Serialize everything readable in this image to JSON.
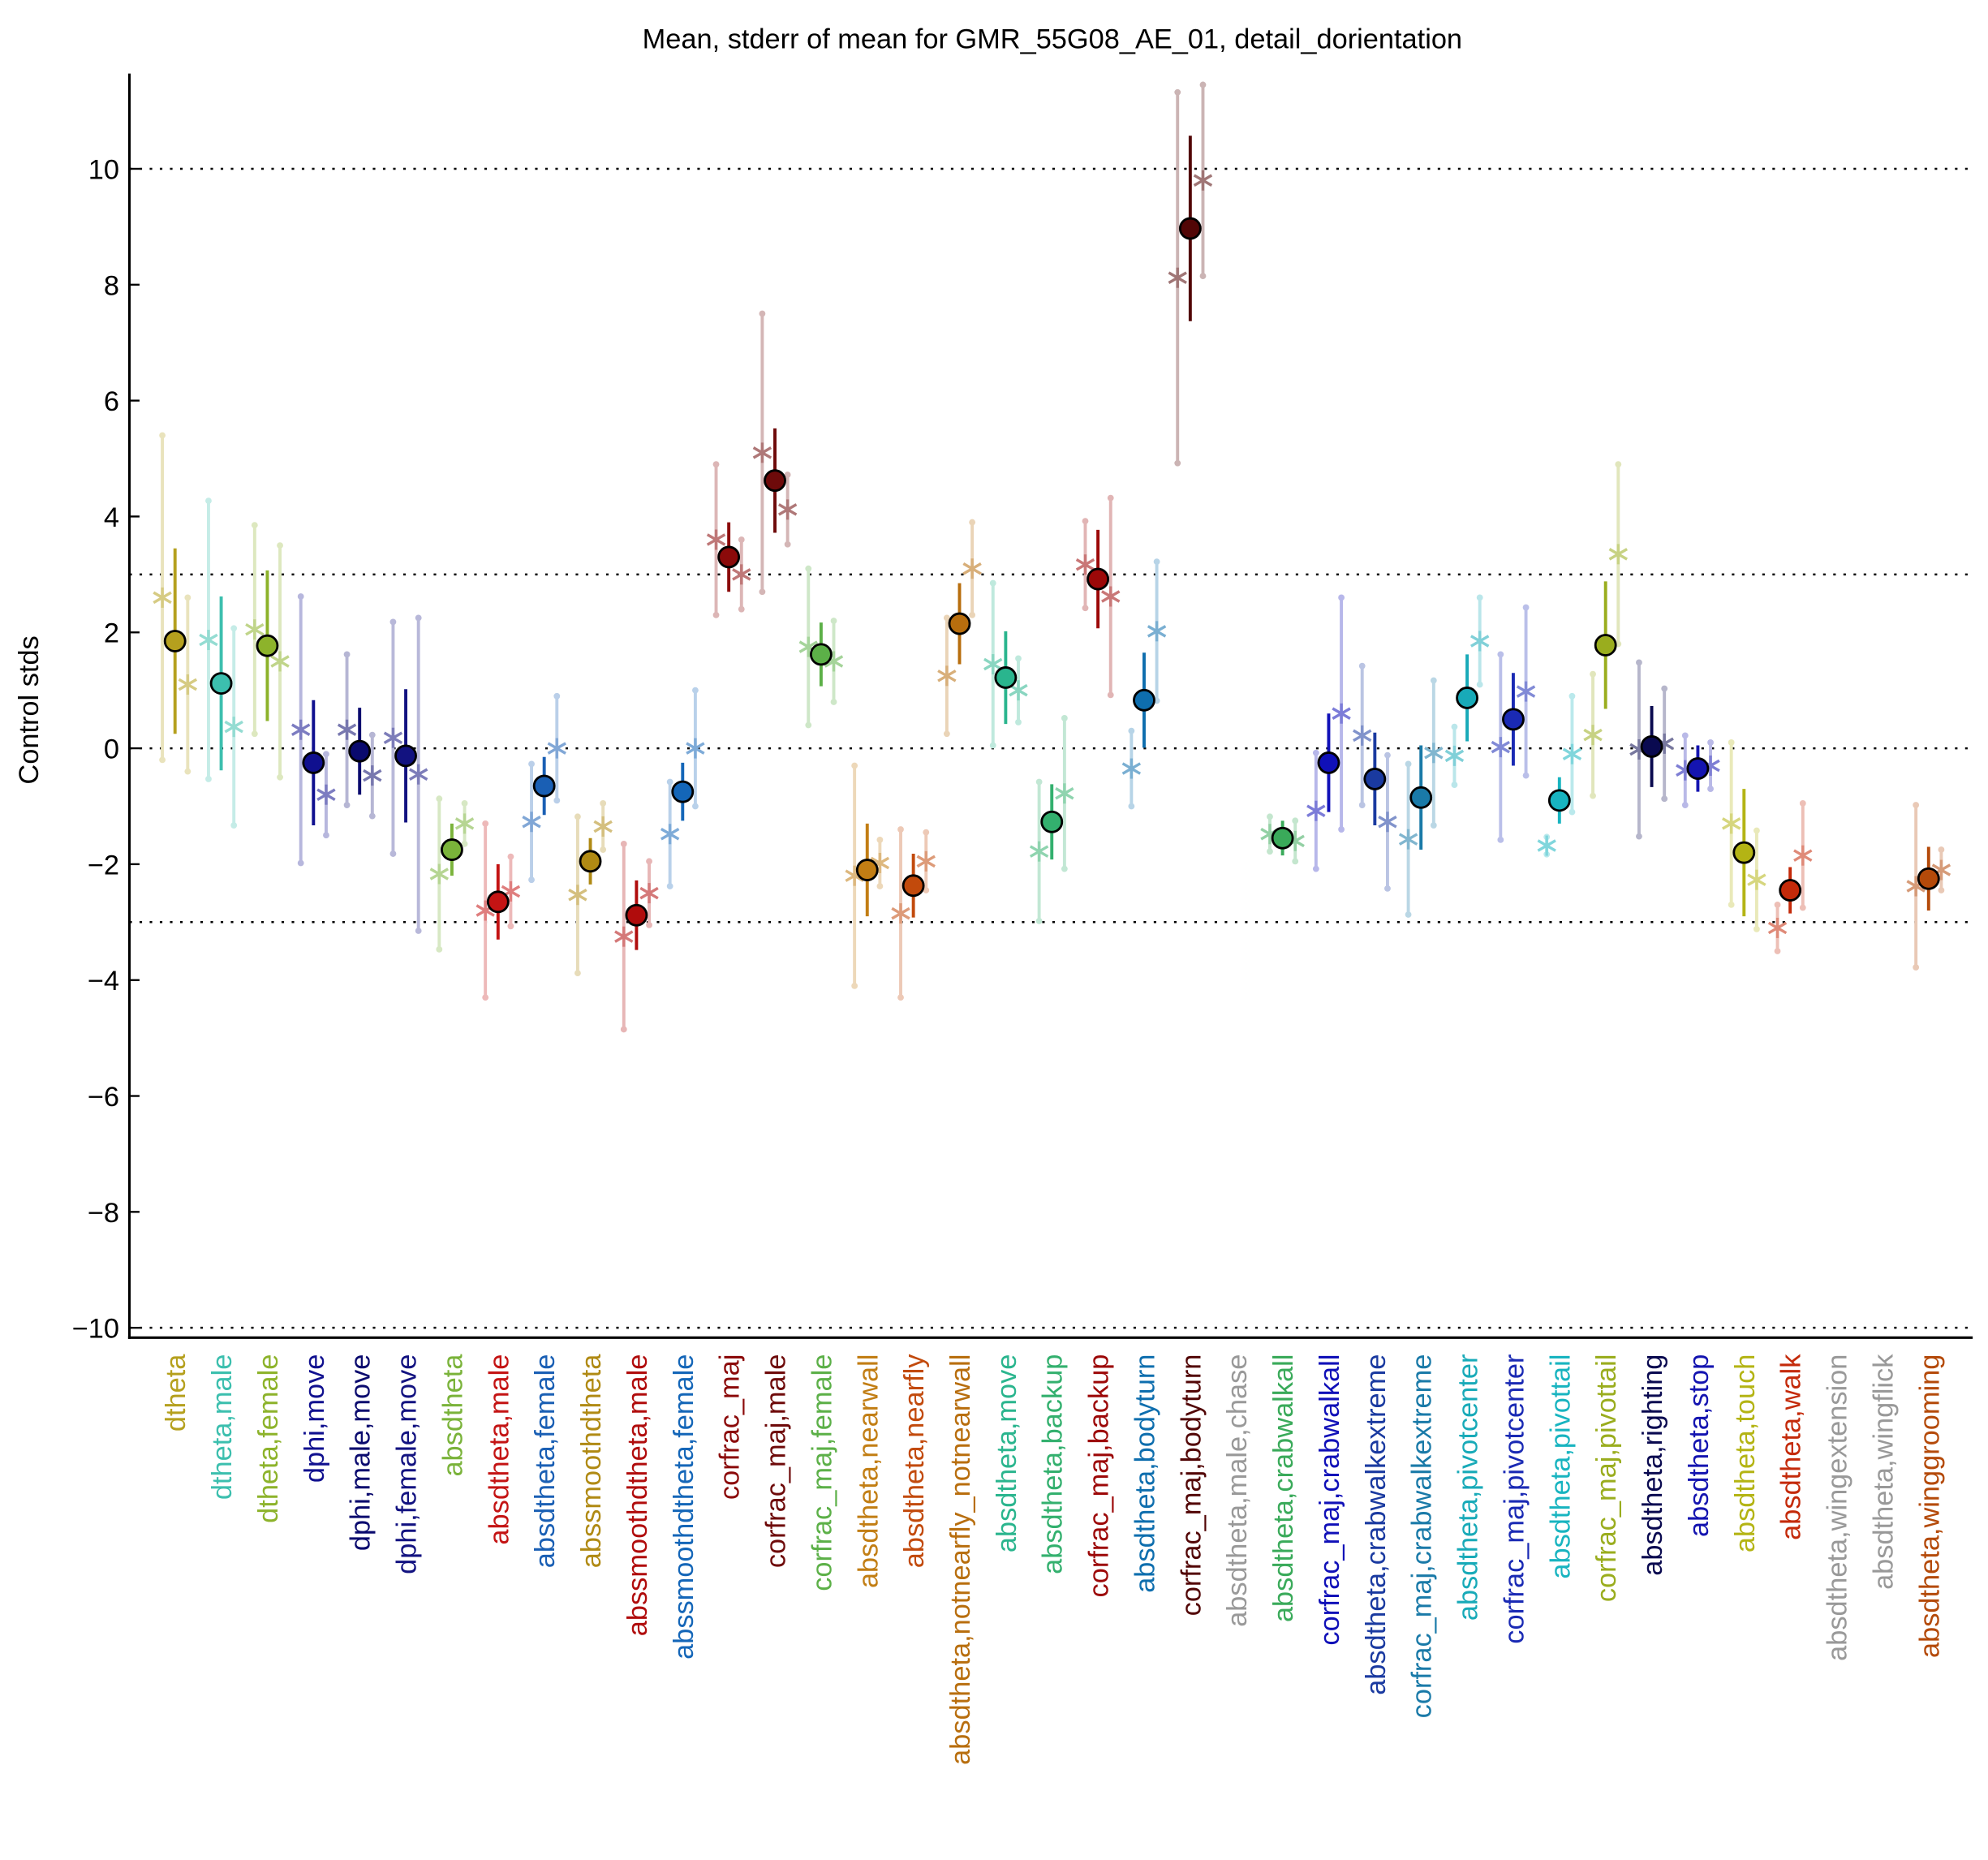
{
  "chart_data": {
    "type": "errorbar",
    "title": "Mean, stderr of mean for GMR_55G08_AE_01, detail_dorientation",
    "y_label": "Control stds",
    "categories": [
      "dtheta",
      "dtheta,male",
      "dtheta,female",
      "dphi,move",
      "dphi,male,move",
      "dphi,female,move",
      "absdtheta",
      "absdtheta,male",
      "absdtheta,female",
      "abssmoothdtheta",
      "abssmoothdtheta,male",
      "abssmoothdtheta,female",
      "corfrac_maj",
      "corfrac_maj,male",
      "corfrac_maj,female",
      "absdtheta,nearwall",
      "absdtheta,nearfly",
      "absdtheta,notnearfly_notnearwall",
      "absdtheta,move",
      "absdtheta,backup",
      "corfrac_maj,backup",
      "absdtheta,bodyturn",
      "corfrac_maj,bodyturn",
      "absdtheta,male,chase",
      "absdtheta,crabwalkall",
      "corfrac_maj,crabwalkall",
      "absdtheta,crabwalkextreme",
      "corfrac_maj,crabwalkextreme",
      "absdtheta,pivotcenter",
      "corfrac_maj,pivotcenter",
      "absdtheta,pivottail",
      "corfrac_maj,pivottail",
      "absdtheta,righting",
      "absdtheta,stop",
      "absdtheta,touch",
      "absdtheta,walk",
      "absdtheta,wingextension",
      "absdtheta,wingflick",
      "absdtheta,winggrooming"
    ],
    "colors": [
      "#b5a01e",
      "#3cbfae",
      "#8db32b",
      "#10108f",
      "#0a0a6e",
      "#121280",
      "#7ab33a",
      "#c41414",
      "#1a5fb4",
      "#b08a14",
      "#b00c0c",
      "#1466b8",
      "#8b0a0a",
      "#6e0a0a",
      "#5cb048",
      "#c27e14",
      "#c24a0c",
      "#b86e0e",
      "#2ab58e",
      "#33b06e",
      "#9c0808",
      "#0e6eae",
      "#520606",
      "#999999",
      "#3aaa5a",
      "#1010b8",
      "#1a3aa0",
      "#1a7aa8",
      "#18aab8",
      "#1a2ab4",
      "#18b4c0",
      "#9aad1e",
      "#0a0a50",
      "#1414b0",
      "#b4b414",
      "#c42a0a",
      "#999999",
      "#999999",
      "#b44a0a"
    ],
    "means": [
      1.85,
      1.12,
      1.77,
      -0.25,
      -0.05,
      -0.13,
      -1.75,
      -2.65,
      -0.65,
      -1.95,
      -2.88,
      -0.75,
      3.3,
      4.62,
      1.62,
      -2.1,
      -2.37,
      2.15,
      1.22,
      -1.27,
      2.92,
      0.83,
      8.97,
      null,
      -1.55,
      -0.25,
      -0.53,
      -0.85,
      0.87,
      0.5,
      -0.9,
      1.78,
      0.03,
      -0.35,
      -1.8,
      -2.45,
      null,
      null,
      -2.25
    ],
    "mean_errors": [
      1.6,
      1.5,
      1.3,
      1.08,
      0.75,
      1.15,
      0.45,
      0.65,
      0.5,
      0.4,
      0.6,
      0.5,
      0.6,
      0.9,
      0.55,
      0.8,
      0.55,
      0.7,
      0.8,
      0.65,
      0.85,
      0.82,
      1.6,
      null,
      0.3,
      0.85,
      0.8,
      0.9,
      0.75,
      0.8,
      0.4,
      1.1,
      0.7,
      0.4,
      1.1,
      0.4,
      null,
      null,
      0.55
    ],
    "left_points": [
      2.6,
      1.87,
      2.05,
      0.32,
      0.32,
      0.18,
      -2.17,
      -2.8,
      -1.27,
      -2.53,
      -3.25,
      -1.48,
      3.6,
      5.1,
      1.75,
      -2.2,
      -2.85,
      1.25,
      1.45,
      -1.78,
      3.17,
      -0.35,
      8.12,
      null,
      -1.48,
      -1.08,
      0.22,
      -1.57,
      -0.13,
      0.02,
      -1.68,
      0.23,
      -0.02,
      -0.38,
      -1.3,
      -3.1,
      null,
      null,
      -2.38
    ],
    "left_errors": [
      2.8,
      2.4,
      1.8,
      2.3,
      1.3,
      2.0,
      1.3,
      1.5,
      1.0,
      1.35,
      1.6,
      0.9,
      1.3,
      2.4,
      1.35,
      1.9,
      1.45,
      1.0,
      1.4,
      1.2,
      0.75,
      0.65,
      3.2,
      null,
      0.3,
      1.0,
      1.2,
      1.3,
      0.5,
      1.6,
      0.15,
      1.05,
      1.5,
      0.6,
      1.4,
      0.4,
      null,
      null,
      1.4
    ],
    "right_points": [
      1.1,
      0.37,
      1.5,
      -0.8,
      -0.47,
      -0.45,
      -1.3,
      -2.47,
      0.0,
      -1.35,
      -2.5,
      0.0,
      3.0,
      4.12,
      1.5,
      -1.98,
      -1.95,
      3.1,
      1.0,
      -0.78,
      2.62,
      2.02,
      9.8,
      null,
      -1.6,
      0.6,
      -1.27,
      -0.08,
      1.85,
      0.98,
      -0.1,
      3.35,
      0.08,
      -0.3,
      -2.27,
      -1.85,
      null,
      null,
      -2.1
    ],
    "right_errors": [
      1.5,
      1.7,
      2.0,
      0.7,
      0.7,
      2.7,
      0.35,
      0.6,
      0.9,
      0.4,
      0.55,
      1.0,
      0.6,
      0.6,
      0.7,
      0.4,
      0.5,
      0.8,
      0.55,
      1.3,
      1.7,
      1.2,
      1.65,
      null,
      0.35,
      2.0,
      1.15,
      1.25,
      0.75,
      1.45,
      1.0,
      1.55,
      0.95,
      0.4,
      0.85,
      0.9,
      null,
      null,
      0.35
    ],
    "ylim": [
      -10.17,
      11.6
    ],
    "yticks": [
      {
        "value": -10,
        "label": "−10"
      },
      {
        "value": -8,
        "label": "−8"
      },
      {
        "value": -6,
        "label": "−6"
      },
      {
        "value": -4,
        "label": "−4"
      },
      {
        "value": -2,
        "label": "−2"
      },
      0,
      2,
      4,
      6,
      8,
      10
    ],
    "reference_lines": [
      10,
      3,
      0,
      -3,
      -10
    ]
  }
}
